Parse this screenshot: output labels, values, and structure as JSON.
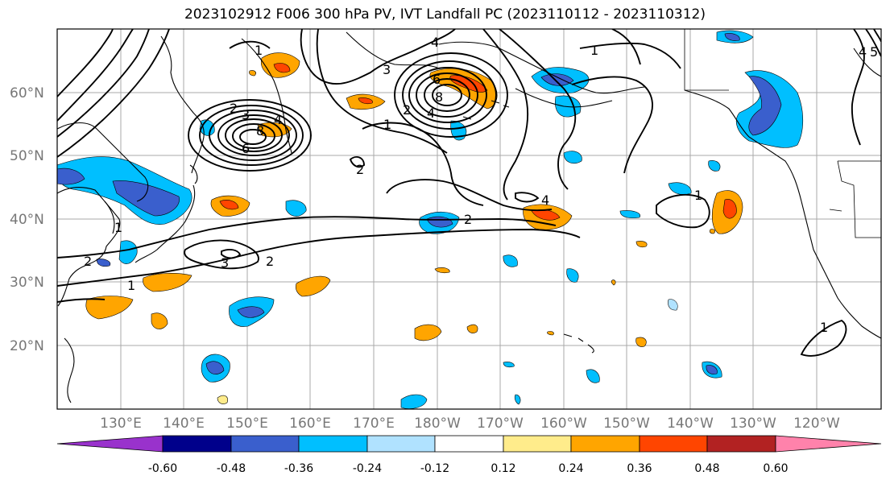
{
  "title": "2023102912 F006 300 hPa PV, IVT Landfall PC (2023110112 - 2023110312)",
  "latitude_labels": [
    "60°N",
    "50°N",
    "40°N",
    "30°N",
    "20°N"
  ],
  "longitude_labels": [
    "130°E",
    "140°E",
    "150°E",
    "160°E",
    "170°E",
    "180°W",
    "170°W",
    "160°W",
    "150°W",
    "140°W",
    "130°W",
    "120°W"
  ],
  "colorbar": {
    "tick_labels": [
      "-0.60",
      "-0.48",
      "-0.36",
      "-0.24",
      "-0.12",
      "0.12",
      "0.24",
      "0.36",
      "0.48",
      "0.60"
    ],
    "colors": [
      "#9932cc",
      "#00008b",
      "#3a5fcd",
      "#00bfff",
      "#b0e2ff",
      "#ffffff",
      "#ffec8b",
      "#ffa500",
      "#ff4500",
      "#b22222",
      "#ff82ab"
    ]
  },
  "pv_contour_labels": [
    "1",
    "2",
    "3",
    "4",
    "6",
    "8",
    "4",
    "3",
    "2",
    "6",
    "8",
    "4",
    "1",
    "2",
    "3",
    "2",
    "1",
    "2",
    "2",
    "1",
    "5",
    "4",
    "1",
    "1",
    "4",
    "1"
  ]
}
